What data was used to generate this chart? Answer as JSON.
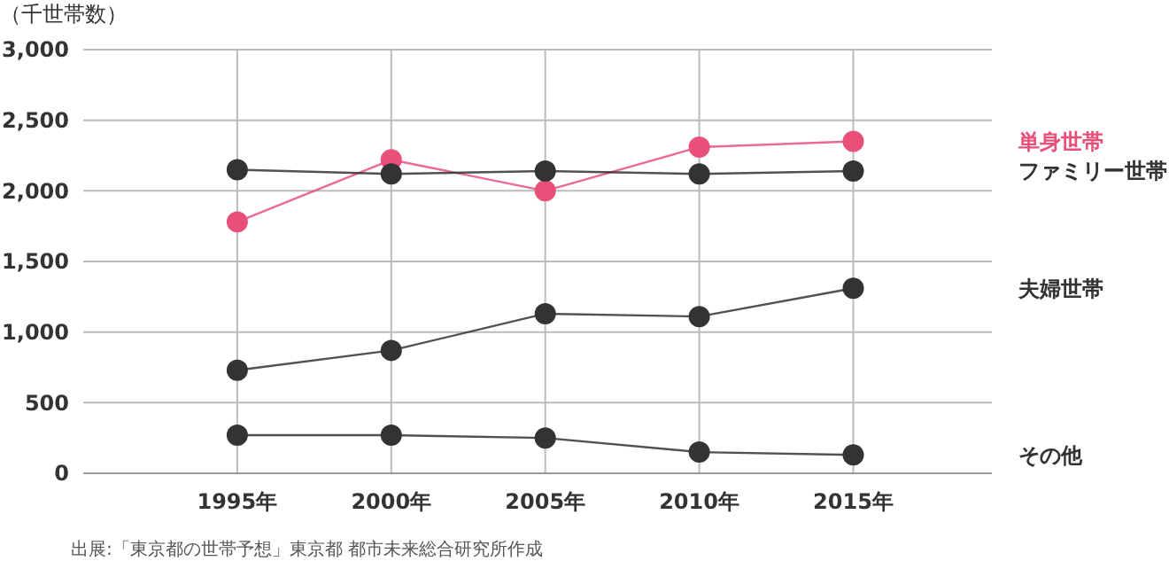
{
  "chart_data": {
    "type": "line",
    "ylabel": "（千世帯数）",
    "annotations": [
      "出展:「東京都の世帯予想」東京都 都市未来総合研究所作成"
    ],
    "x": [
      1995,
      2000,
      2005,
      2010,
      2015
    ],
    "xlim": [
      1990,
      2019.5
    ],
    "xticks": [
      {
        "value": 1995,
        "label": "1995年"
      },
      {
        "value": 2000,
        "label": "2000年"
      },
      {
        "value": 2005,
        "label": "2005年"
      },
      {
        "value": 2010,
        "label": "2010年"
      },
      {
        "value": 2015,
        "label": "2015年"
      }
    ],
    "ylim": [
      0,
      3000
    ],
    "yticks": [
      {
        "value": 0,
        "label": "0"
      },
      {
        "value": 500,
        "label": "500"
      },
      {
        "value": 1000,
        "label": "1,000"
      },
      {
        "value": 1500,
        "label": "1,500"
      },
      {
        "value": 2000,
        "label": "2,000"
      },
      {
        "value": 2500,
        "label": "2,500"
      },
      {
        "value": 3000,
        "label": "3,000"
      }
    ],
    "grid": true,
    "marker": "circle",
    "line_style": "solid",
    "series": [
      {
        "name": "単身世帯",
        "color": "#e8507a",
        "values": [
          1780,
          2220,
          2000,
          2310,
          2350
        ]
      },
      {
        "name": "ファミリー世帯",
        "color": "#333333",
        "values": [
          2150,
          2120,
          2140,
          2120,
          2140
        ]
      },
      {
        "name": "夫婦世帯",
        "color": "#333333",
        "values": [
          730,
          870,
          1130,
          1110,
          1310
        ]
      },
      {
        "name": "その他",
        "color": "#333333",
        "values": [
          270,
          270,
          250,
          150,
          130
        ]
      }
    ]
  }
}
